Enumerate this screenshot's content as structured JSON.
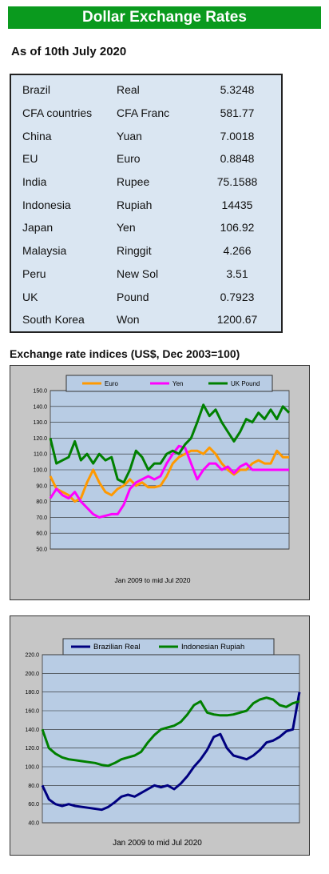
{
  "page": {
    "title": "Dollar Exchange Rates",
    "as_of": "As of 10th July 2020",
    "indices_title": "Exchange rate indices (US$, Dec 2003=100)"
  },
  "rates": [
    {
      "country": "Brazil",
      "currency": "Real",
      "rate": "5.3248"
    },
    {
      "country": "CFA countries",
      "currency": "CFA Franc",
      "rate": "581.77"
    },
    {
      "country": "China",
      "currency": "Yuan",
      "rate": "7.0018"
    },
    {
      "country": "EU",
      "currency": "Euro",
      "rate": "0.8848"
    },
    {
      "country": "India",
      "currency": "Rupee",
      "rate": "75.1588"
    },
    {
      "country": "Indonesia",
      "currency": "Rupiah",
      "rate": "14435"
    },
    {
      "country": "Japan",
      "currency": "Yen",
      "rate": "106.92"
    },
    {
      "country": "Malaysia",
      "currency": "Ringgit",
      "rate": "4.266"
    },
    {
      "country": "Peru",
      "currency": "New Sol",
      "rate": "3.51"
    },
    {
      "country": "UK",
      "currency": "Pound",
      "rate": "0.7923"
    },
    {
      "country": "South Korea",
      "currency": "Won",
      "rate": "1200.67"
    }
  ],
  "chart_data": [
    {
      "type": "line",
      "xlabel": "Jan 2009  to mid Jul 2020",
      "ylim": [
        50,
        150
      ],
      "yticks": [
        "50.0",
        "60.0",
        "70.0",
        "80.0",
        "90.0",
        "100.0",
        "110.0",
        "120.0",
        "130.0",
        "140.0",
        "150.0"
      ],
      "grid": true,
      "legend": "top",
      "x_range": [
        "2009-01",
        "2020-07"
      ],
      "plot_background": "#b8cce4",
      "series": [
        {
          "name": "Euro",
          "color": "#ff9900",
          "values": [
            96,
            88,
            86,
            84,
            80,
            82,
            92,
            100,
            92,
            86,
            84,
            88,
            90,
            94,
            90,
            92,
            89,
            89,
            90,
            96,
            104,
            108,
            110,
            112,
            112,
            110,
            114,
            110,
            104,
            100,
            97,
            100,
            100,
            104,
            106,
            104,
            104,
            112,
            108,
            108
          ]
        },
        {
          "name": "Yen",
          "color": "#ff00ff",
          "values": [
            82,
            88,
            84,
            82,
            86,
            80,
            76,
            72,
            70,
            71,
            72,
            72,
            78,
            88,
            92,
            94,
            96,
            94,
            96,
            104,
            110,
            115,
            114,
            104,
            94,
            100,
            104,
            104,
            100,
            102,
            98,
            102,
            104,
            100,
            100,
            100,
            100,
            100,
            100,
            100
          ]
        },
        {
          "name": "UK Pound",
          "color": "#008000",
          "values": [
            120,
            104,
            106,
            108,
            118,
            106,
            110,
            104,
            110,
            106,
            108,
            94,
            92,
            100,
            112,
            108,
            100,
            104,
            104,
            110,
            112,
            110,
            116,
            120,
            130,
            141,
            134,
            138,
            130,
            124,
            118,
            124,
            132,
            130,
            136,
            132,
            138,
            132,
            140,
            136
          ]
        }
      ]
    },
    {
      "type": "line",
      "xlabel": "Jan 2009  to mid Jul 2020",
      "ylim": [
        40,
        220
      ],
      "yticks": [
        "40.0",
        "60.0",
        "80.0",
        "100.0",
        "120.0",
        "140.0",
        "160.0",
        "180.0",
        "200.0",
        "220.0"
      ],
      "grid": true,
      "legend": "top",
      "x_range": [
        "2009-01",
        "2020-07"
      ],
      "plot_background": "#b8cce4",
      "series": [
        {
          "name": "Brazilian Real",
          "color": "#000080",
          "values": [
            80,
            65,
            60,
            58,
            60,
            58,
            57,
            56,
            55,
            54,
            57,
            62,
            68,
            70,
            68,
            72,
            76,
            80,
            78,
            80,
            76,
            82,
            90,
            100,
            108,
            118,
            132,
            135,
            120,
            112,
            110,
            108,
            112,
            118,
            126,
            128,
            132,
            138,
            140,
            180
          ]
        },
        {
          "name": "Indonesian Rupiah",
          "color": "#008000",
          "values": [
            140,
            120,
            114,
            110,
            108,
            107,
            106,
            105,
            104,
            102,
            101,
            104,
            108,
            110,
            112,
            116,
            126,
            134,
            140,
            142,
            144,
            148,
            156,
            166,
            170,
            158,
            156,
            155,
            155,
            156,
            158,
            160,
            168,
            172,
            174,
            172,
            166,
            164,
            168,
            170
          ]
        }
      ]
    }
  ]
}
